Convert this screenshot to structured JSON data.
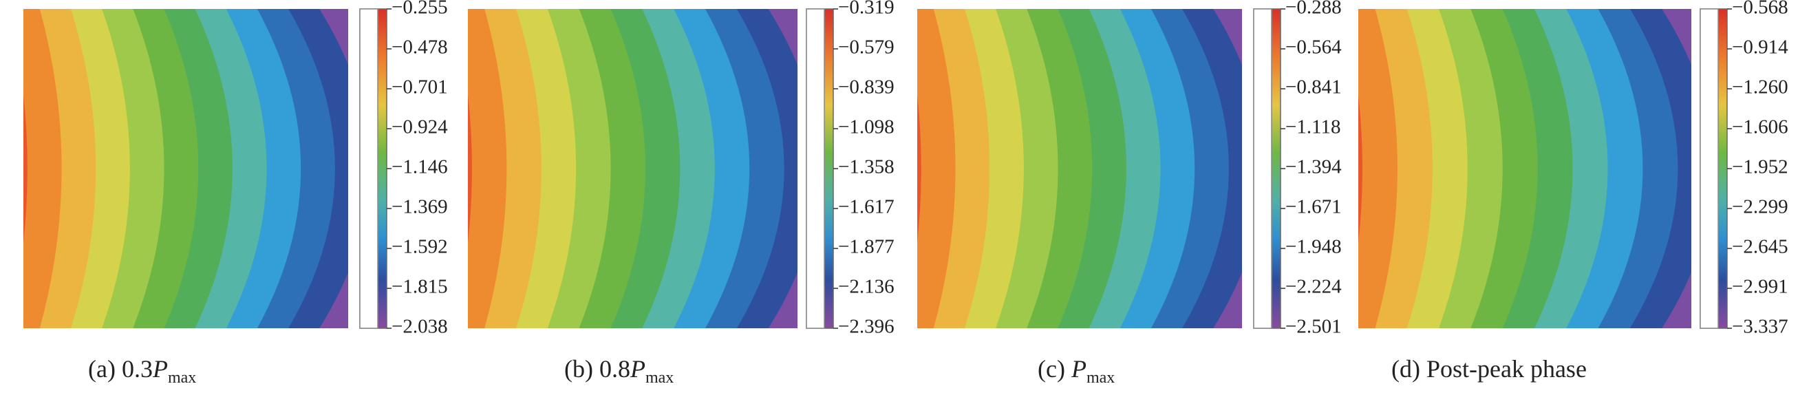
{
  "panels": [
    {
      "ticks": [
        "−0.255",
        "−0.478",
        "−0.701",
        "−0.924",
        "−1.146",
        "−1.369",
        "−1.592",
        "−1.815",
        "−2.038"
      ],
      "caption": {
        "prefix": "(a) 0.3",
        "symbol": "P",
        "subscript": "max"
      }
    },
    {
      "ticks": [
        "−0.319",
        "−0.579",
        "−0.839",
        "−1.098",
        "−1.358",
        "−1.617",
        "−1.877",
        "−2.136",
        "−2.396"
      ],
      "caption": {
        "prefix": "(b) 0.8",
        "symbol": "P",
        "subscript": "max"
      }
    },
    {
      "ticks": [
        "−0.288",
        "−0.564",
        "−0.841",
        "−1.118",
        "−1.394",
        "−1.671",
        "−1.948",
        "−2.224",
        "−2.501"
      ],
      "caption": {
        "prefix": "(c) ",
        "symbol": "P",
        "subscript": "max"
      }
    },
    {
      "ticks": [
        "−0.568",
        "−0.914",
        "−1.260",
        "−1.606",
        "−1.952",
        "−2.299",
        "−2.645",
        "−2.991",
        "−3.337"
      ],
      "caption": {
        "prefix": "(d) Post-peak phase"
      }
    }
  ]
}
